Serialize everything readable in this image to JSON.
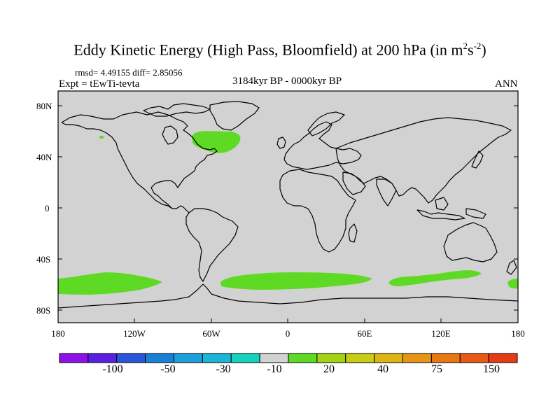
{
  "title": {
    "main": "Eddy Kinetic Energy (High Pass, Bloomfield) at 200 hPa (in m",
    "sup1": "2",
    "mid": "s",
    "sup2": "-2",
    "end": ")"
  },
  "stats": "rmsd= 4.49155 diff= 2.85056",
  "expt": "Expt = tEwTi-tevta",
  "period": "3184kyr BP - 0000kyr BP",
  "season": "ANN",
  "axes": {
    "lat_labels": [
      "80N",
      "40N",
      "0",
      "40S",
      "80S"
    ],
    "lon_labels": [
      "180",
      "120W",
      "60W",
      "0",
      "60E",
      "120E",
      "180"
    ]
  },
  "colorbar": {
    "colors": [
      "#8e10e8",
      "#5a1fe0",
      "#2a55d8",
      "#1a7fd6",
      "#1e9fdc",
      "#1ab5d8",
      "#14d2bc",
      "#d2d2d2",
      "#5fda24",
      "#a2d414",
      "#c8cc14",
      "#dcb414",
      "#e69614",
      "#e67814",
      "#e65a14",
      "#e63c14"
    ],
    "labels": [
      "-100",
      "-50",
      "-30",
      "-10",
      "20",
      "40",
      "75",
      "150"
    ]
  },
  "map": {
    "land_color": "#d2d2d2",
    "positive_color": "#5fda24"
  }
}
